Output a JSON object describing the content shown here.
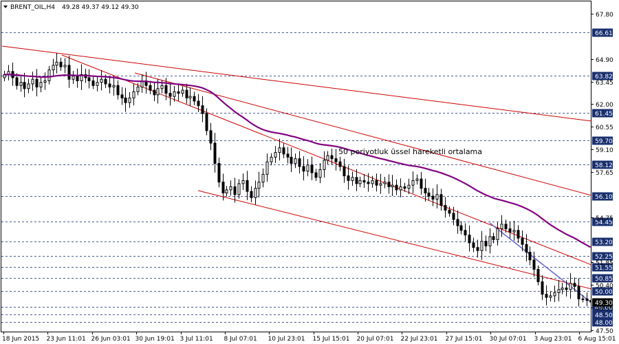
{
  "header": {
    "symbol": "BRENT_OIL,H4",
    "ohlc": "49.28 49.37 49.12 49.30"
  },
  "annotation": "50 periyotluk üssel hareketli ortalama",
  "colors": {
    "candle": "#000000",
    "ema": "#800080",
    "trend_red": "#cc0000",
    "trend_blue": "#6a6acc",
    "level_line": "#4a5a8a",
    "level_label_bg": "#1a2f6e",
    "current_label_bg": "#000000"
  },
  "chart_data": {
    "type": "candlestick",
    "symbol": "BRENT_OIL",
    "timeframe": "H4",
    "ylim": [
      47.4,
      68.6
    ],
    "y_ticks": [
      67.8,
      64.9,
      63.45,
      62.0,
      60.55,
      59.1,
      57.65,
      54.75,
      51.85,
      50.4,
      48.95,
      47.5
    ],
    "x_ticks": [
      "18 Jun 2015",
      "23 Jun 11:01",
      "26 Jun 03:01",
      "30 Jun 19:01",
      "3 Jul 11:01",
      "8 Jul 07:01",
      "10 Jul 23:01",
      "15 Jul 15:01",
      "20 Jul 07:01",
      "22 Jul 23:01",
      "27 Jul 15:01",
      "30 Jul 07:01",
      "3 Aug 23:01",
      "6 Aug 15:01"
    ],
    "levels": [
      {
        "label": "66.61",
        "value": 66.61
      },
      {
        "label": "63.82",
        "value": 63.82
      },
      {
        "label": "61.45",
        "value": 61.45
      },
      {
        "label": "59.70",
        "value": 59.7
      },
      {
        "label": "58.12",
        "value": 58.12
      },
      {
        "label": "56.10",
        "value": 56.1
      },
      {
        "label": "54.45",
        "value": 54.45
      },
      {
        "label": "53.20",
        "value": 53.2
      },
      {
        "label": "52.25",
        "value": 52.25
      },
      {
        "label": "51.55",
        "value": 51.55
      },
      {
        "label": "50.85",
        "value": 50.85
      },
      {
        "label": "50.00",
        "value": 50.0
      },
      {
        "label": "49.00",
        "value": 49.0
      },
      {
        "label": "48.50",
        "value": 48.5
      },
      {
        "label": "48.00",
        "value": 48.0
      }
    ],
    "current_price": {
      "label": "49.30",
      "value": 49.3
    },
    "close": [
      63.9,
      64.1,
      63.7,
      63.2,
      63.4,
      63.0,
      63.3,
      63.6,
      63.1,
      63.4,
      63.5,
      64.2,
      64.5,
      64.7,
      64.4,
      64.5,
      63.6,
      63.8,
      63.5,
      63.9,
      63.7,
      63.5,
      63.2,
      63.4,
      63.6,
      63.3,
      63.1,
      63.2,
      62.6,
      62.4,
      62.1,
      62.4,
      62.8,
      63.1,
      63.5,
      63.2,
      62.9,
      62.6,
      63.0,
      63.2,
      62.7,
      62.5,
      62.8,
      62.7,
      62.9,
      62.4,
      62.5,
      62.2,
      61.9,
      61.4,
      60.3,
      59.5,
      58.2,
      57.0,
      56.3,
      56.5,
      56.7,
      56.2,
      56.9,
      57.1,
      56.4,
      56.0,
      56.6,
      57.0,
      57.5,
      58.3,
      58.6,
      58.9,
      59.2,
      58.8,
      58.6,
      58.2,
      58.5,
      58.0,
      57.7,
      58.1,
      57.6,
      57.3,
      57.8,
      58.4,
      58.7,
      58.5,
      58.3,
      58.0,
      57.4,
      57.1,
      57.3,
      56.9,
      57.1,
      57.0,
      56.9,
      57.1,
      56.8,
      56.9,
      57.0,
      56.7,
      56.8,
      56.5,
      56.7,
      56.6,
      56.8,
      57.1,
      57.2,
      56.6,
      56.3,
      56.1,
      55.9,
      56.2,
      55.5,
      55.2,
      55.0,
      54.6,
      54.2,
      53.9,
      53.6,
      53.1,
      52.8,
      52.6,
      53.2,
      52.9,
      53.5,
      53.3,
      54.0,
      54.3,
      54.0,
      53.8,
      53.9,
      53.4,
      53.0,
      52.5,
      52.0,
      51.4,
      50.6,
      49.8,
      49.6,
      49.7,
      49.9,
      50.1,
      50.2,
      50.1,
      50.5,
      50.3,
      49.5,
      49.5,
      49.4,
      49.3
    ]
  }
}
